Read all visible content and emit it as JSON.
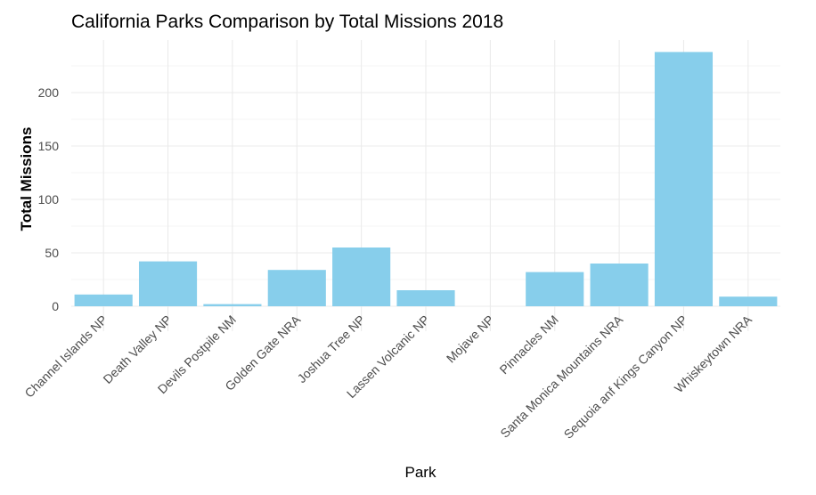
{
  "chart_data": {
    "type": "bar",
    "title": "California Parks Comparison by Total Missions 2018",
    "xlabel": "Park",
    "ylabel": "Total Missions",
    "categories": [
      "Channel Islands NP",
      "Death Valley NP",
      "Devils Postpile NM",
      "Golden Gate NRA",
      "Joshua Tree NP",
      "Lassen Volcanic NP",
      "Mojave NP",
      "Pinnacles NM",
      "Santa Monica Mountains NRA",
      "Sequoia anf Kings Canyon NP",
      "Whiskeytown NRA"
    ],
    "values": [
      11,
      42,
      2,
      34,
      55,
      15,
      0,
      32,
      40,
      238,
      9
    ],
    "yticks": [
      0,
      50,
      100,
      150,
      200
    ],
    "ylim": [
      0,
      250
    ],
    "grid": true,
    "bar_color": "#87CEEB",
    "grid_color": "#ebebeb",
    "axis_text_color": "#4d4d4d"
  }
}
